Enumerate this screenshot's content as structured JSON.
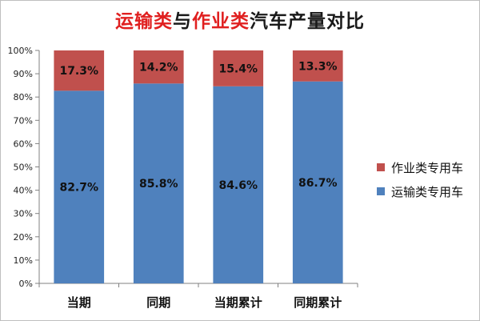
{
  "title_parts": {
    "p1": "运输类",
    "p2": "与",
    "p3": "作业类",
    "p4": "汽车产量对比"
  },
  "colors": {
    "transport": "#4f81bd",
    "work": "#c0504d",
    "title_accent": "#e02020"
  },
  "legend": {
    "work_label": "作业类专用车",
    "transport_label": "运输类专用车"
  },
  "chart_data": {
    "type": "bar",
    "stacked": true,
    "title": "运输类与作业类汽车产量对比",
    "categories": [
      "当期",
      "同期",
      "当期累计",
      "同期累计"
    ],
    "series": [
      {
        "name": "运输类专用车",
        "values": [
          82.7,
          85.8,
          84.6,
          86.7
        ],
        "labels": [
          "82.7%",
          "85.8%",
          "84.6%",
          "86.7%"
        ]
      },
      {
        "name": "作业类专用车",
        "values": [
          17.3,
          14.2,
          15.4,
          13.3
        ],
        "labels": [
          "17.3%",
          "14.2%",
          "15.4%",
          "13.3%"
        ]
      }
    ],
    "ylim": [
      0,
      100
    ],
    "yticks": [
      "0%",
      "10%",
      "20%",
      "30%",
      "40%",
      "50%",
      "60%",
      "70%",
      "80%",
      "90%",
      "100%"
    ],
    "grid": false,
    "legend_position": "right"
  }
}
